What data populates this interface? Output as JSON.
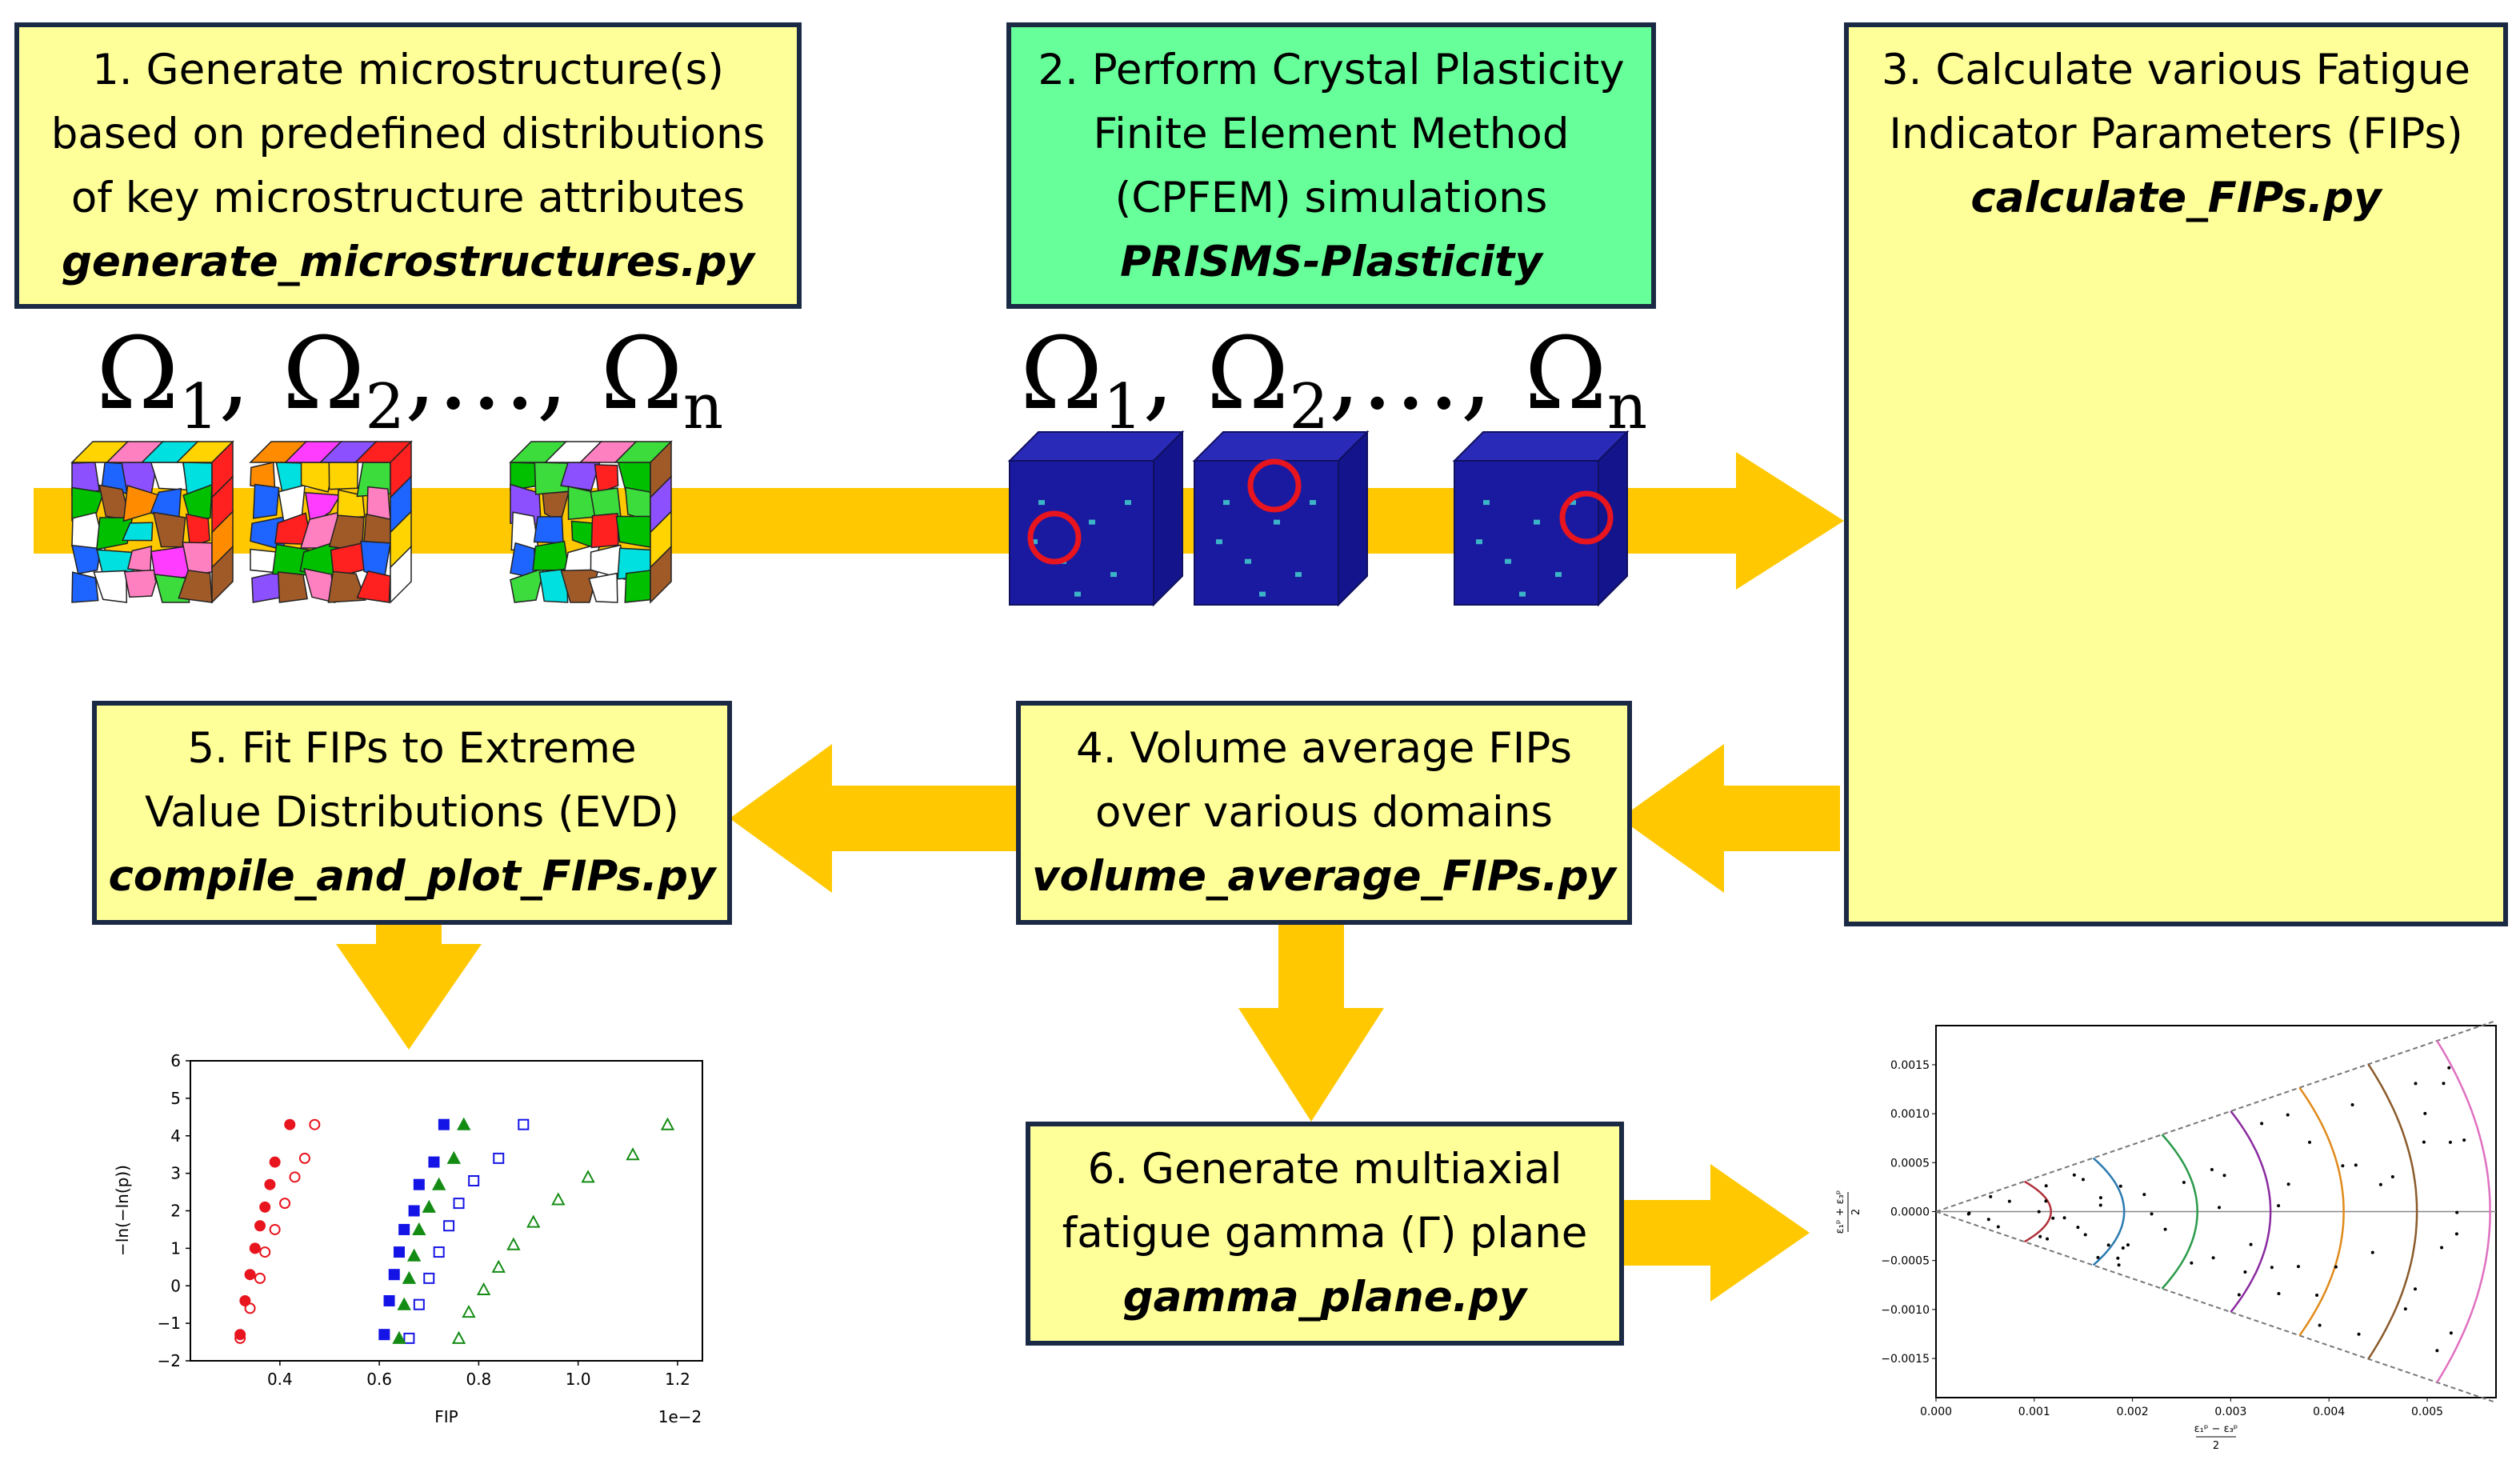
{
  "steps": [
    {
      "lines": [
        "1. Generate microstructure(s)",
        "based on predefined distributions",
        "of key microstructure attributes"
      ],
      "code": "generate_microstructures.py"
    },
    {
      "lines": [
        "2. Perform Crystal Plasticity",
        "Finite Element Method",
        "(CPFEM) simulations"
      ],
      "code": "PRISMS-Plasticity"
    },
    {
      "lines": [
        "3. Calculate various Fatigue",
        "Indicator Parameters (FIPs)"
      ],
      "code": "calculate_FIPs.py"
    },
    {
      "lines": [
        "4. Volume average FIPs",
        "over various domains"
      ],
      "code": "volume_average_FIPs.py"
    },
    {
      "lines": [
        "5. Fit FIPs to Extreme",
        "Value Distributions (EVD)"
      ],
      "code": "compile_and_plot_FIPs.py"
    },
    {
      "lines": [
        "6. Generate multiaxial",
        "fatigue gamma (Γ) plane"
      ],
      "code": "gamma_plane.py"
    }
  ],
  "omega_sequence": {
    "symbol": "Ω",
    "sub1": "1",
    "sub2": "2",
    "subn": "n",
    "sep": ",",
    "dots": ",…,"
  },
  "colors": {
    "box_fill": "#ffff99",
    "box_fill_green": "#66ff99",
    "box_border": "#1b2a44",
    "arrow": "#ffc800",
    "cube_blue": "#1a1aa0",
    "circle": "#e8141e",
    "red_arrow": "#ff2020",
    "blue_arrow": "#0a14e6"
  },
  "evd_plot": {
    "xlabel": "FIP",
    "ylabel": "−ln(−ln(p))",
    "x_ticks": [
      "0.4",
      "0.6",
      "0.8",
      "1.0",
      "1.2"
    ],
    "x_multiplier": "1e−2",
    "y_ticks": [
      "6",
      "5",
      "4",
      "3",
      "2",
      "1",
      "0",
      "−1",
      "−2"
    ]
  },
  "chart_data": {
    "type": "scatter",
    "title": "",
    "xlabel": "FIP",
    "ylabel": "−ln(−ln(p))",
    "xlim": [
      0.22,
      1.25
    ],
    "ylim": [
      -2,
      6
    ],
    "x_scale_factor": "1e-2",
    "series": [
      {
        "color": "#e8141e",
        "marker": "filled-circle",
        "x": [
          0.32,
          0.33,
          0.34,
          0.35,
          0.36,
          0.37,
          0.38,
          0.39,
          0.42
        ],
        "y": [
          -1.3,
          -0.4,
          0.3,
          1.0,
          1.6,
          2.1,
          2.7,
          3.3,
          4.3
        ]
      },
      {
        "color": "#e8141e",
        "marker": "open-circle",
        "x": [
          0.32,
          0.34,
          0.36,
          0.37,
          0.39,
          0.41,
          0.43,
          0.45,
          0.47
        ],
        "y": [
          -1.4,
          -0.6,
          0.2,
          0.9,
          1.5,
          2.2,
          2.9,
          3.4,
          4.3
        ]
      },
      {
        "color": "#1414e6",
        "marker": "filled-square",
        "x": [
          0.61,
          0.62,
          0.63,
          0.64,
          0.65,
          0.67,
          0.68,
          0.71,
          0.73
        ],
        "y": [
          -1.3,
          -0.4,
          0.3,
          0.9,
          1.5,
          2.0,
          2.7,
          3.3,
          4.3
        ]
      },
      {
        "color": "#1414e6",
        "marker": "open-square",
        "x": [
          0.66,
          0.68,
          0.7,
          0.72,
          0.74,
          0.76,
          0.79,
          0.84,
          0.89
        ],
        "y": [
          -1.4,
          -0.5,
          0.2,
          0.9,
          1.6,
          2.2,
          2.8,
          3.4,
          4.3
        ]
      },
      {
        "color": "#148c14",
        "marker": "filled-triangle",
        "x": [
          0.64,
          0.65,
          0.66,
          0.67,
          0.68,
          0.7,
          0.72,
          0.75,
          0.77
        ],
        "y": [
          -1.4,
          -0.5,
          0.2,
          0.8,
          1.5,
          2.1,
          2.7,
          3.4,
          4.3
        ]
      },
      {
        "color": "#148c14",
        "marker": "open-triangle",
        "x": [
          0.76,
          0.78,
          0.81,
          0.84,
          0.87,
          0.91,
          0.96,
          1.02,
          1.11,
          1.18
        ],
        "y": [
          -1.4,
          -0.7,
          -0.1,
          0.5,
          1.1,
          1.7,
          2.3,
          2.9,
          3.5,
          4.3
        ]
      }
    ]
  },
  "gamma_plot": {
    "x_ticks": [
      "0.000",
      "0.001",
      "0.002",
      "0.003",
      "0.004",
      "0.005"
    ],
    "y_ticks": [
      "0.0015",
      "0.0010",
      "0.0005",
      "0.0000",
      "−0.0005",
      "−0.0010",
      "−0.0015"
    ],
    "xlabel_num": "ε₁ᵖ − ε₃ᵖ",
    "xlabel_den": "2",
    "ylabel_num": "ε₁ᵖ + ε₃ᵖ",
    "ylabel_den": "2",
    "curve_colors": [
      "#b0303a",
      "#2a7ab0",
      "#2a9a4a",
      "#8a2aa0",
      "#e08a1a",
      "#8a5a2a",
      "#e070c0"
    ]
  }
}
